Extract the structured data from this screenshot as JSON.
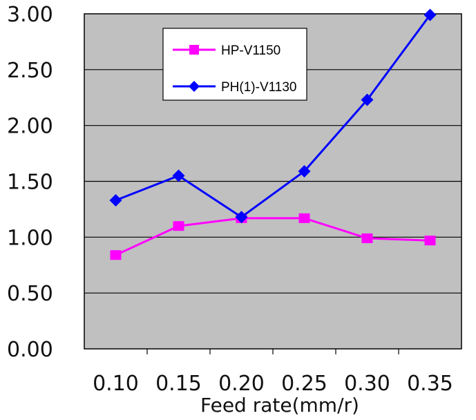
{
  "chart_data": {
    "type": "line",
    "title": "",
    "xlabel": "Feed rate(mm/r)",
    "ylabel": "",
    "categories": [
      "0.10",
      "0.15",
      "0.20",
      "0.25",
      "0.30",
      "0.35"
    ],
    "y_ticks": [
      "0.00",
      "0.50",
      "1.00",
      "1.50",
      "2.00",
      "2.50",
      "3.00"
    ],
    "ylim": [
      0,
      3.0
    ],
    "grid": "horizontal",
    "plot_background": "#c0c0c0",
    "legend_position": "top-left inside plot",
    "series": [
      {
        "name": "HP-V1150",
        "color": "#ff00ff",
        "marker": "square",
        "values": [
          0.84,
          1.1,
          1.17,
          1.17,
          0.99,
          0.97
        ]
      },
      {
        "name": "PH(1)-V1130",
        "color": "#0000ff",
        "marker": "diamond",
        "values": [
          1.33,
          1.55,
          1.18,
          1.59,
          2.23,
          2.99
        ]
      }
    ]
  }
}
